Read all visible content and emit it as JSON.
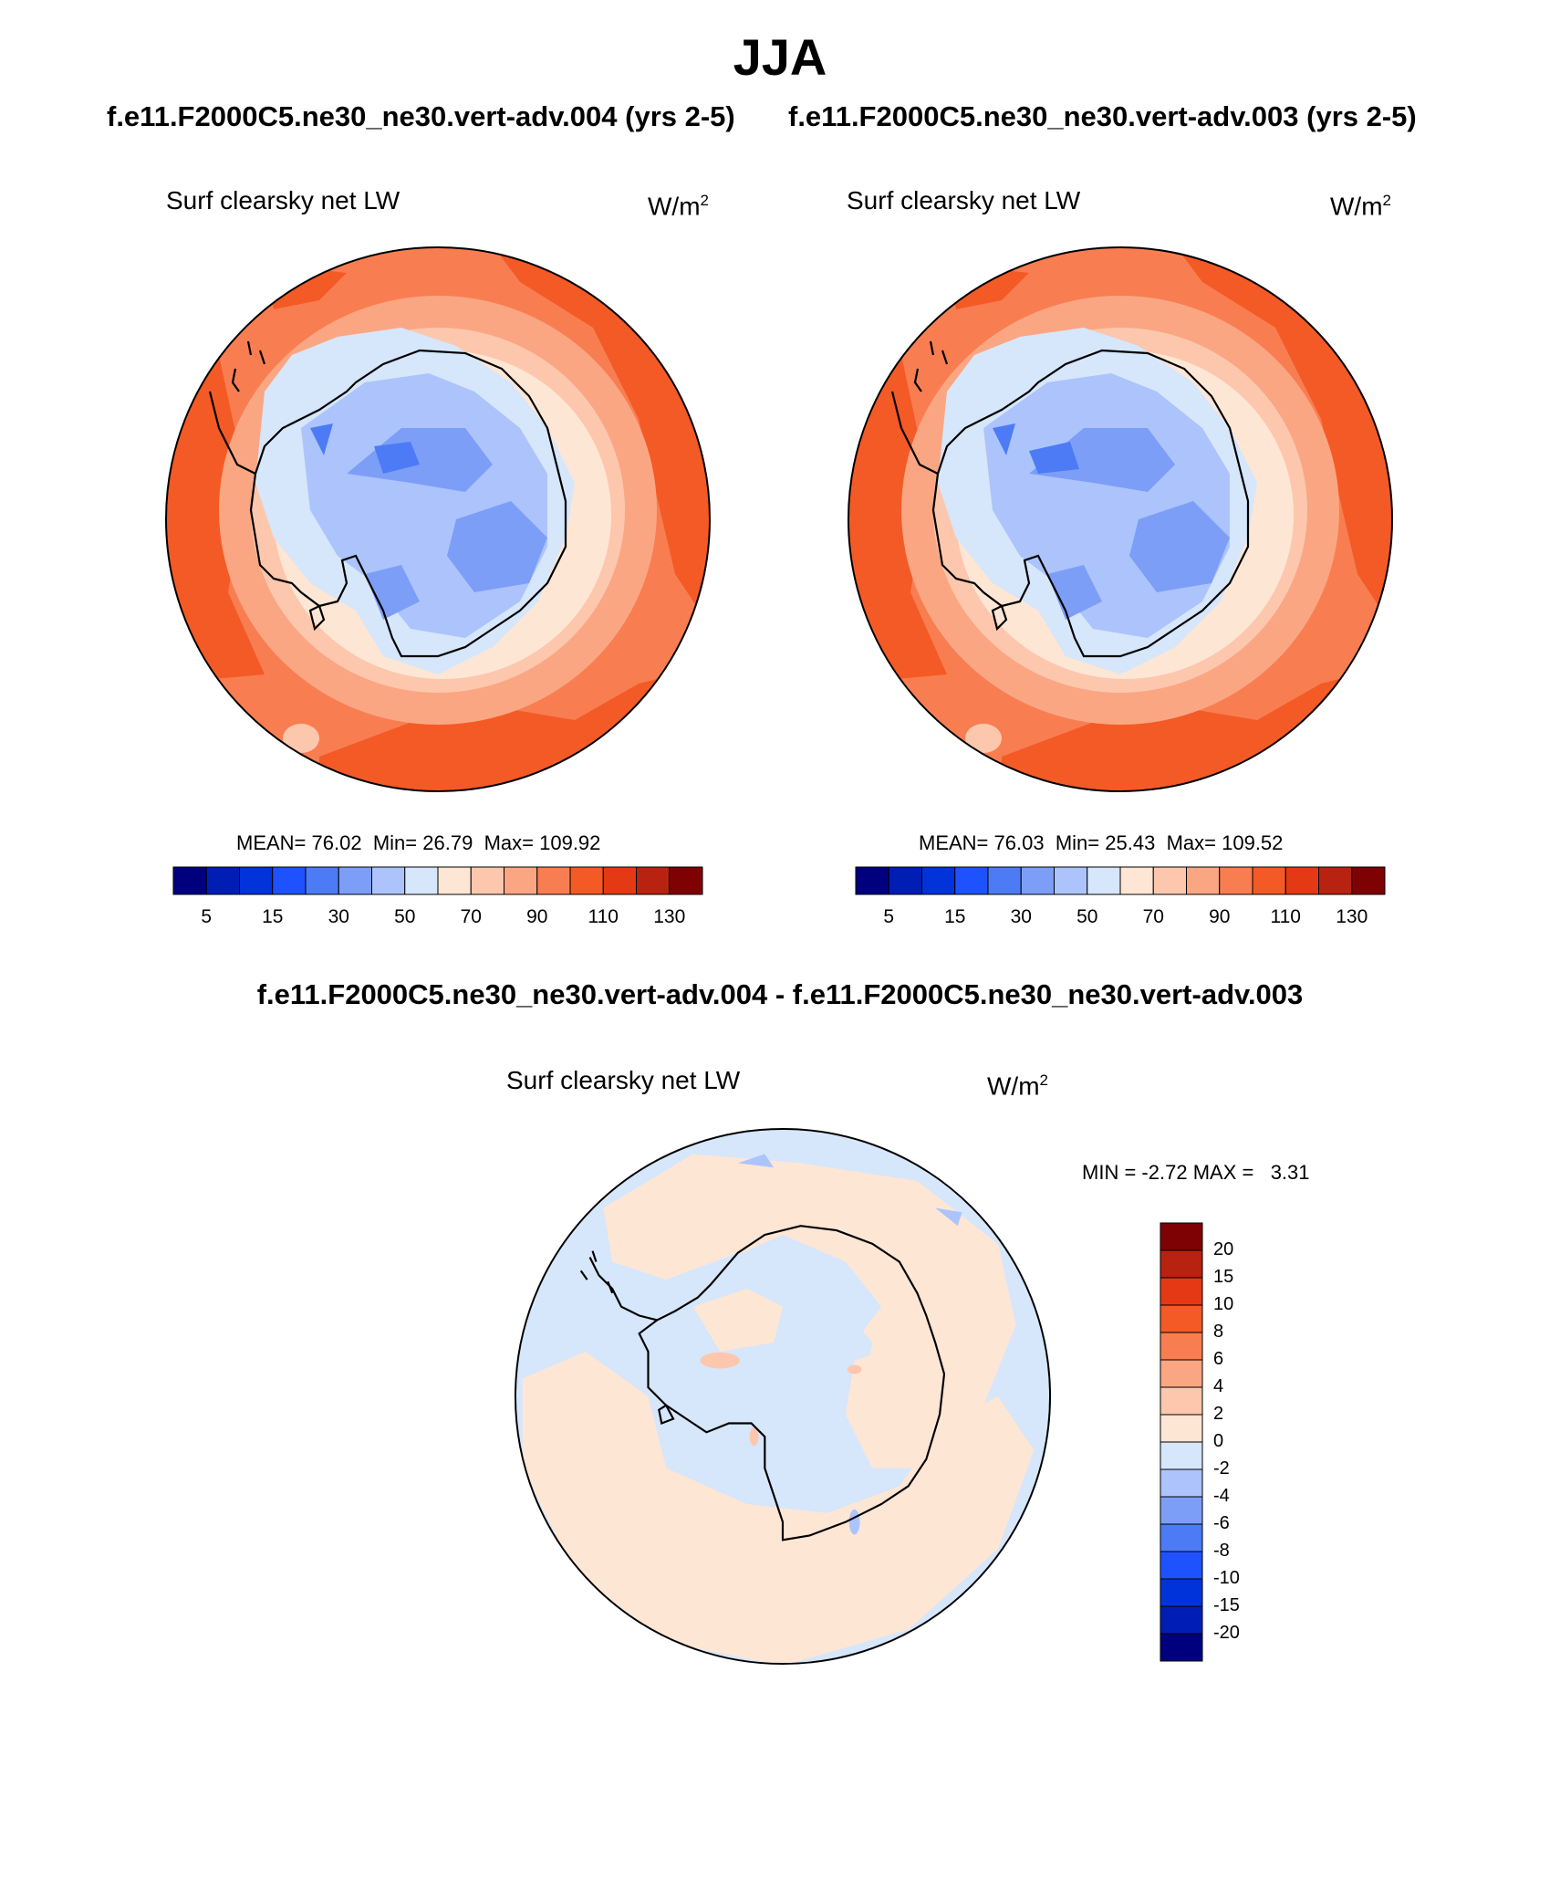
{
  "title": "JJA",
  "panels": [
    {
      "case_title": "f.e11.F2000C5.ne30_ne30.vert-adv.004 (yrs 2-5)",
      "variable": "Surf clearsky net LW",
      "units": "W/m",
      "units_sup": "2",
      "stats": {
        "mean_label": "MEAN=",
        "mean": "76.02",
        "min_label": "Min=",
        "min": "26.79",
        "max_label": "Max=",
        "max": "109.92"
      }
    },
    {
      "case_title": "f.e11.F2000C5.ne30_ne30.vert-adv.003 (yrs 2-5)",
      "variable": "Surf clearsky net LW",
      "units": "W/m",
      "units_sup": "2",
      "stats": {
        "mean_label": "MEAN=",
        "mean": "76.03",
        "min_label": "Min=",
        "min": "25.43",
        "max_label": "Max=",
        "max": "109.52"
      }
    }
  ],
  "colorbar": {
    "colors": [
      "#00007f",
      "#001eb4",
      "#0033d9",
      "#1f52ff",
      "#4c7bf5",
      "#7d9ef7",
      "#acc4fb",
      "#d6e6fb",
      "#fee6d5",
      "#fdc7ad",
      "#fba683",
      "#f87e52",
      "#f45a26",
      "#e53916",
      "#b82211",
      "#7e0204"
    ],
    "ticks": [
      "5",
      "15",
      "30",
      "50",
      "70",
      "90",
      "110",
      "130"
    ]
  },
  "difference": {
    "title": "f.e11.F2000C5.ne30_ne30.vert-adv.004 - f.e11.F2000C5.ne30_ne30.vert-adv.003",
    "variable": "Surf clearsky net LW",
    "units": "W/m",
    "units_sup": "2",
    "minmax": {
      "min_label": "MIN =",
      "min": "-2.72",
      "max_label": "MAX =",
      "max": "3.31"
    },
    "colorbar": {
      "colors_top_to_bottom": [
        "#7e0204",
        "#b82211",
        "#e53916",
        "#f45a26",
        "#f87e52",
        "#fba683",
        "#fdc7ad",
        "#fee6d5",
        "#d6e6fb",
        "#acc4fb",
        "#7d9ef7",
        "#4c7bf5",
        "#1f52ff",
        "#0033d9",
        "#001eb4",
        "#00007f"
      ],
      "ticks": [
        "20",
        "15",
        "10",
        "8",
        "6",
        "4",
        "2",
        "0",
        "-2",
        "-4",
        "-6",
        "-8",
        "-10",
        "-15",
        "-20"
      ]
    }
  }
}
